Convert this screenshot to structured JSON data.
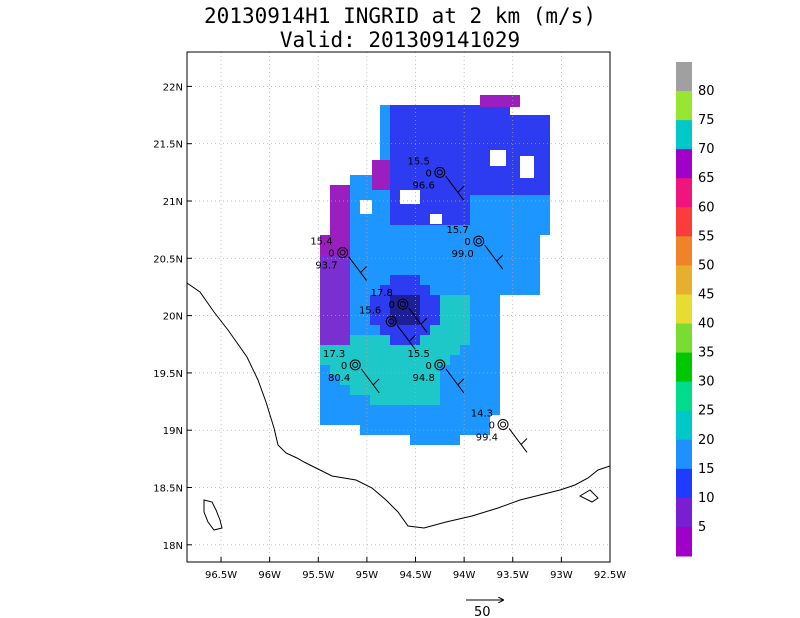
{
  "title": "20130914H1 INGRID at 2 km (m/s)",
  "subtitle": "Valid: 201309141029",
  "chart_data": {
    "type": "heatmap",
    "variable": "wind speed",
    "units": "m/s",
    "x_ticks": [
      "96.5W",
      "96W",
      "95.5W",
      "95W",
      "94.5W",
      "94W",
      "93.5W",
      "93W",
      "92.5W"
    ],
    "x_values": [
      -96.5,
      -96,
      -95.5,
      -95,
      -94.5,
      -94,
      -93.5,
      -93,
      -92.5
    ],
    "y_ticks": [
      "22N",
      "21.5N",
      "21N",
      "20.5N",
      "20N",
      "19.5N",
      "19N",
      "18.5N",
      "18N"
    ],
    "y_values": [
      22,
      21.5,
      21,
      20.5,
      20,
      19.5,
      19,
      18.5,
      18
    ],
    "xlim": [
      -96.85,
      -92.5
    ],
    "ylim": [
      17.85,
      22.3
    ],
    "grid": true,
    "colorbar": {
      "labels": [
        "5",
        "10",
        "15",
        "20",
        "25",
        "30",
        "35",
        "40",
        "45",
        "50",
        "55",
        "60",
        "65",
        "70",
        "75",
        "80"
      ],
      "colors": [
        "#a000c8",
        "#7a1ed2",
        "#1e3cff",
        "#1e90ff",
        "#00c8c8",
        "#00dc8c",
        "#00c800",
        "#78dc32",
        "#e6dc32",
        "#e6af2d",
        "#f08228",
        "#fa3c3c",
        "#f0147d",
        "#a000c8",
        "#00c8c8",
        "#96e632",
        "#a0a0a0"
      ]
    },
    "stations": [
      {
        "lon": -94.25,
        "lat": 21.25,
        "speed": "15.5",
        "dir": "0",
        "pressure": "96.6"
      },
      {
        "lon": -93.85,
        "lat": 20.65,
        "speed": "15.7",
        "dir": "0",
        "pressure": "99.0"
      },
      {
        "lon": -95.25,
        "lat": 20.55,
        "speed": "15.4",
        "dir": "0",
        "pressure": "93.7"
      },
      {
        "lon": -94.63,
        "lat": 20.1,
        "speed": "17.8",
        "dir": "0",
        "pressure": ""
      },
      {
        "lon": -94.75,
        "lat": 19.95,
        "speed": "15.6",
        "dir": "",
        "pressure": ""
      },
      {
        "lon": -95.12,
        "lat": 19.57,
        "speed": "17.3",
        "dir": "0",
        "pressure": "80.4"
      },
      {
        "lon": -94.25,
        "lat": 19.57,
        "speed": "15.5",
        "dir": "0",
        "pressure": "94.8"
      },
      {
        "lon": -93.6,
        "lat": 19.05,
        "speed": "14.3",
        "dir": "0",
        "pressure": "99.4"
      }
    ],
    "reference_vector": "50"
  }
}
